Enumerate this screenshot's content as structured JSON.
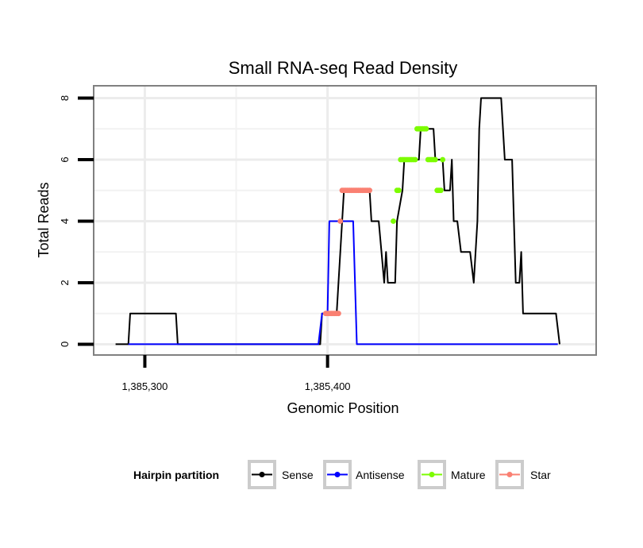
{
  "chart_data": {
    "type": "line",
    "title": "Small RNA-seq Read Density",
    "xlabel": "Genomic Position",
    "ylabel": "Total Reads",
    "xlim": [
      1385272,
      1385547
    ],
    "ylim": [
      -0.35,
      8.4
    ],
    "x_ticks": [
      {
        "value": 1385300,
        "label": "1,385,300"
      },
      {
        "value": 1385400,
        "label": "1,385,400"
      }
    ],
    "y_ticks": [
      {
        "value": 0,
        "label": "0"
      },
      {
        "value": 2,
        "label": "2"
      },
      {
        "value": 4,
        "label": "4"
      },
      {
        "value": 6,
        "label": "6"
      },
      {
        "value": 8,
        "label": "8"
      }
    ],
    "minor_x_grid": [
      1385250,
      1385350,
      1385450
    ],
    "minor_y_grid": [
      1,
      3,
      5,
      7
    ],
    "grid": true,
    "legend": {
      "title": "Hairpin partition",
      "position": "bottom",
      "entries": [
        {
          "name": "Sense",
          "color": "#000000"
        },
        {
          "name": "Antisense",
          "color": "#0000ff"
        },
        {
          "name": "Mature",
          "color": "#7cfc00"
        },
        {
          "name": "Star",
          "color": "#fa8072"
        }
      ]
    },
    "series": [
      {
        "name": "Sense",
        "color": "#000000",
        "mode": "line",
        "points": [
          [
            1385284,
            0
          ],
          [
            1385291,
            0
          ],
          [
            1385292,
            1
          ],
          [
            1385317,
            1
          ],
          [
            1385318,
            0
          ],
          [
            1385396,
            0
          ],
          [
            1385397,
            1
          ],
          [
            1385405,
            1
          ],
          [
            1385408,
            4
          ],
          [
            1385409,
            5
          ],
          [
            1385423,
            5
          ],
          [
            1385424,
            4
          ],
          [
            1385428,
            4
          ],
          [
            1385431,
            2
          ],
          [
            1385432,
            3
          ],
          [
            1385433,
            2
          ],
          [
            1385437,
            2
          ],
          [
            1385438,
            4
          ],
          [
            1385441,
            5
          ],
          [
            1385442,
            6
          ],
          [
            1385450,
            6
          ],
          [
            1385451,
            7
          ],
          [
            1385458,
            7
          ],
          [
            1385459,
            6
          ],
          [
            1385463,
            6
          ],
          [
            1385464,
            5
          ],
          [
            1385467,
            5
          ],
          [
            1385468,
            6
          ],
          [
            1385469,
            4
          ],
          [
            1385471,
            4
          ],
          [
            1385473,
            3
          ],
          [
            1385478,
            3
          ],
          [
            1385480,
            2
          ],
          [
            1385482,
            4
          ],
          [
            1385483,
            7
          ],
          [
            1385484,
            8
          ],
          [
            1385495,
            8
          ],
          [
            1385497,
            6
          ],
          [
            1385501,
            6
          ],
          [
            1385503,
            2
          ],
          [
            1385505,
            2
          ],
          [
            1385506,
            3
          ],
          [
            1385507,
            1
          ],
          [
            1385525,
            1
          ],
          [
            1385527,
            0
          ]
        ]
      },
      {
        "name": "Antisense",
        "color": "#0000ff",
        "mode": "line",
        "points": [
          [
            1385291,
            0
          ],
          [
            1385395,
            0
          ],
          [
            1385397,
            1
          ],
          [
            1385400,
            1
          ],
          [
            1385401,
            4
          ],
          [
            1385414,
            4
          ],
          [
            1385416,
            0
          ],
          [
            1385526,
            0
          ]
        ]
      },
      {
        "name": "Mature",
        "color": "#7cfc00",
        "mode": "points",
        "points": [
          [
            1385436,
            4
          ],
          [
            1385438,
            5
          ],
          [
            1385439,
            5
          ],
          [
            1385440,
            6
          ],
          [
            1385441,
            6
          ],
          [
            1385442,
            6
          ],
          [
            1385443,
            6
          ],
          [
            1385444,
            6
          ],
          [
            1385445,
            6
          ],
          [
            1385446,
            6
          ],
          [
            1385447,
            6
          ],
          [
            1385448,
            6
          ],
          [
            1385449,
            7
          ],
          [
            1385450,
            7
          ],
          [
            1385451,
            7
          ],
          [
            1385452,
            7
          ],
          [
            1385453,
            7
          ],
          [
            1385454,
            7
          ],
          [
            1385455,
            6
          ],
          [
            1385456,
            6
          ],
          [
            1385457,
            6
          ],
          [
            1385458,
            6
          ],
          [
            1385459,
            6
          ],
          [
            1385460,
            5
          ],
          [
            1385461,
            5
          ],
          [
            1385462,
            5
          ],
          [
            1385463,
            6
          ]
        ]
      },
      {
        "name": "Star",
        "color": "#fa8072",
        "mode": "points",
        "points": [
          [
            1385399,
            1
          ],
          [
            1385400,
            1
          ],
          [
            1385401,
            1
          ],
          [
            1385402,
            1
          ],
          [
            1385403,
            1
          ],
          [
            1385404,
            1
          ],
          [
            1385405,
            1
          ],
          [
            1385406,
            1
          ],
          [
            1385407,
            4
          ],
          [
            1385408,
            5
          ],
          [
            1385409,
            5
          ],
          [
            1385410,
            5
          ],
          [
            1385411,
            5
          ],
          [
            1385412,
            5
          ],
          [
            1385413,
            5
          ],
          [
            1385414,
            5
          ],
          [
            1385415,
            5
          ],
          [
            1385416,
            5
          ],
          [
            1385417,
            5
          ],
          [
            1385418,
            5
          ],
          [
            1385419,
            5
          ],
          [
            1385420,
            5
          ],
          [
            1385421,
            5
          ],
          [
            1385422,
            5
          ],
          [
            1385423,
            5
          ]
        ]
      }
    ]
  }
}
